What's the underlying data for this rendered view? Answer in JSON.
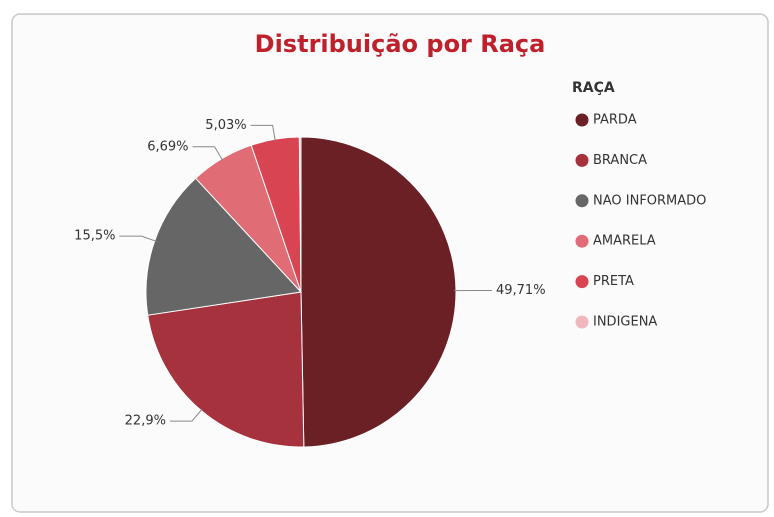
{
  "chart_data": {
    "type": "pie",
    "title": "Distribuição por Raça",
    "legend_title": "RAÇA",
    "categories": [
      "PARDA",
      "BRANCA",
      "NAO INFORMADO",
      "AMARELA",
      "PRETA",
      "INDIGENA"
    ],
    "values": [
      49.71,
      22.9,
      15.5,
      6.69,
      5.03,
      0.17
    ],
    "value_labels": [
      "49,71%",
      "22,9%",
      "15,5%",
      "6,69%",
      "5,03%",
      null
    ],
    "colors": [
      "#6b2026",
      "#a5323c",
      "#666666",
      "#e06c75",
      "#d94452",
      "#f0b8be"
    ],
    "legend": "right"
  }
}
